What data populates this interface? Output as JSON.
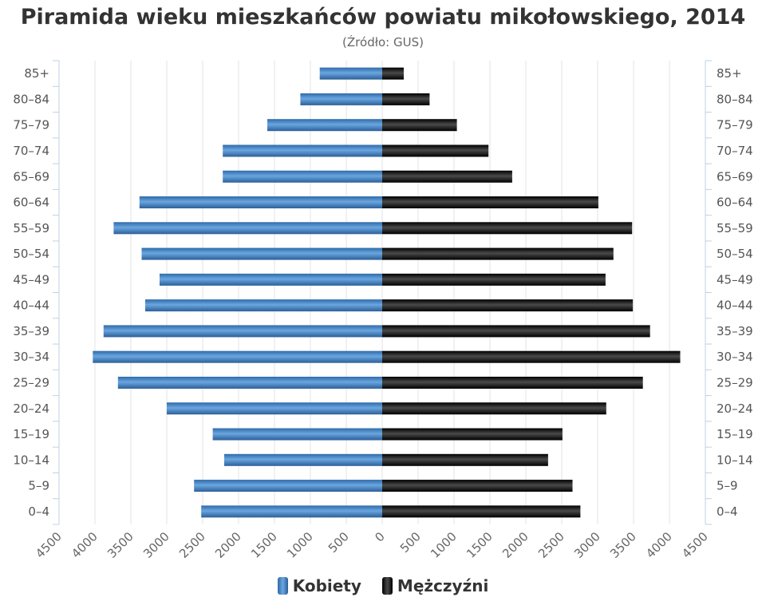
{
  "chart_data": {
    "type": "bar",
    "orientation": "horizontal-pyramid",
    "title": "Piramida wieku mieszkańców powiatu mikołowskiego, 2014",
    "subtitle": "(Źródło: GUS)",
    "categories": [
      "0–4",
      "5–9",
      "10–14",
      "15–19",
      "20–24",
      "25–29",
      "30–34",
      "35–39",
      "40–44",
      "45–49",
      "50–54",
      "55–59",
      "60–64",
      "65–69",
      "70–74",
      "75–79",
      "80–84",
      "85+"
    ],
    "series": [
      {
        "name": "Kobiety",
        "side": "left",
        "color": "#3f7fbf",
        "values": [
          2520,
          2620,
          2200,
          2360,
          3000,
          3680,
          4030,
          3880,
          3300,
          3100,
          3350,
          3740,
          3380,
          2220,
          2220,
          1600,
          1140,
          870
        ]
      },
      {
        "name": "Mężczyźni",
        "side": "right",
        "color": "#111111",
        "values": [
          2760,
          2650,
          2310,
          2510,
          3120,
          3630,
          4150,
          3730,
          3490,
          3110,
          3220,
          3480,
          3010,
          1810,
          1480,
          1040,
          660,
          300
        ]
      }
    ],
    "xticks": [
      4500,
      4000,
      3500,
      3000,
      2500,
      2000,
      1500,
      1000,
      500,
      0,
      500,
      1000,
      1500,
      2000,
      2500,
      3000,
      3500,
      4000,
      4500
    ],
    "xlim": [
      -4500,
      4500
    ],
    "grid": true,
    "legend_position": "bottom"
  }
}
